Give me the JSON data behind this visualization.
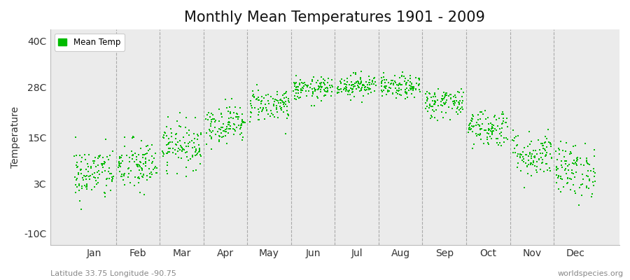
{
  "title": "Monthly Mean Temperatures 1901 - 2009",
  "ylabel": "Temperature",
  "subtitle_left": "Latitude 33.75 Longitude -90.75",
  "subtitle_right": "worldspecies.org",
  "yticks": [
    -10,
    3,
    15,
    28,
    40
  ],
  "ytick_labels": [
    "-10C",
    "3C",
    "15C",
    "28C",
    "40C"
  ],
  "ylim": [
    -13,
    43
  ],
  "xlim": [
    0,
    13
  ],
  "months": [
    "Jan",
    "Feb",
    "Mar",
    "Apr",
    "May",
    "Jun",
    "Jul",
    "Aug",
    "Sep",
    "Oct",
    "Nov",
    "Dec"
  ],
  "month_positions": [
    1,
    2,
    3,
    4,
    5,
    6,
    7,
    8,
    9,
    10,
    11,
    12
  ],
  "mean_temps": [
    5.5,
    7.5,
    13.0,
    18.5,
    23.5,
    27.5,
    28.5,
    28.0,
    24.0,
    17.5,
    10.5,
    6.5
  ],
  "std_temps": [
    3.5,
    3.5,
    3.0,
    2.5,
    2.2,
    1.5,
    1.5,
    1.5,
    2.0,
    2.5,
    3.0,
    3.5
  ],
  "n_years": 109,
  "dot_color": "#00bb00",
  "dot_size": 3,
  "background_color": "#ebebeb",
  "outer_background": "#ffffff",
  "vline_color": "#999999",
  "title_fontsize": 15,
  "axis_label_fontsize": 10,
  "tick_fontsize": 10,
  "legend_label": "Mean Temp",
  "seed": 42,
  "x_jitter": 0.45
}
